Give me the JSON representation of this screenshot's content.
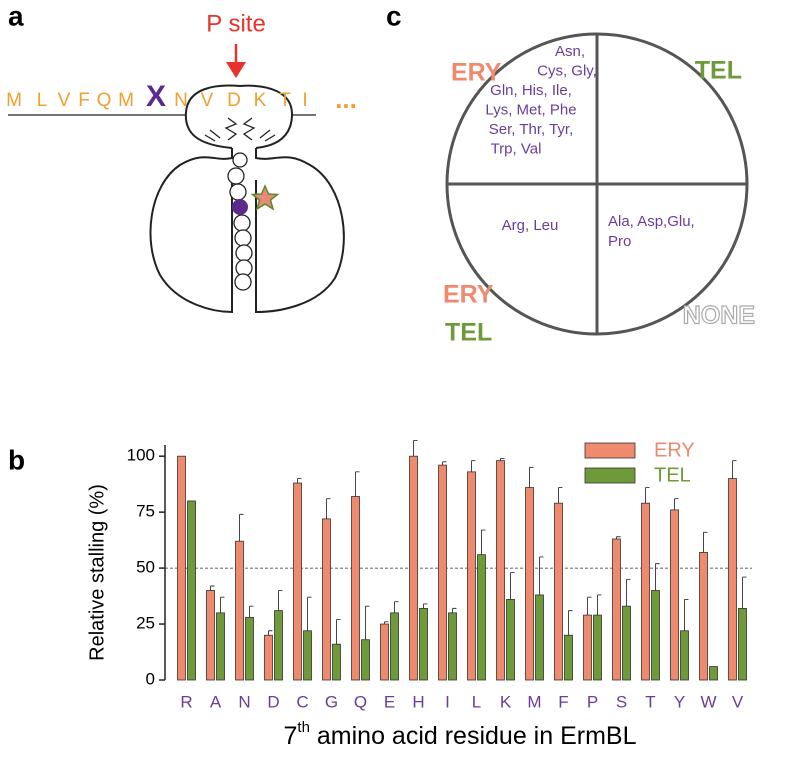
{
  "panel_labels": [
    "a",
    "b",
    "c"
  ],
  "panel_a": {
    "site_label": "P site",
    "sequence": [
      "M",
      "L",
      "V",
      "F",
      "Q",
      "M",
      "X",
      "N",
      "V",
      "D",
      "K",
      "T",
      "I",
      "..."
    ]
  },
  "panel_c": {
    "quadrants": [
      {
        "labels": [
          "ERY"
        ],
        "residues": [
          "Asn,",
          "Cys,  Gly,",
          "Gln, His,  Ile,",
          "Lys, Met, Phe",
          "Ser, Thr, Tyr,",
          "Trp, Val"
        ]
      },
      {
        "labels": [
          "TEL"
        ],
        "residues": []
      },
      {
        "labels": [
          "ERY",
          "TEL"
        ],
        "residues": [
          "Arg, Leu"
        ]
      },
      {
        "labels": [
          "NONE"
        ],
        "residues": [
          "Ala, Asp,Glu,",
          "Pro"
        ]
      }
    ]
  },
  "chart_data": {
    "type": "bar",
    "y_label": "Relative stalling (%)",
    "x_label_parts": [
      "7",
      "th",
      " amino acid residue in ErmBL"
    ],
    "categories": [
      "R",
      "A",
      "N",
      "D",
      "C",
      "G",
      "Q",
      "E",
      "H",
      "I",
      "L",
      "K",
      "M",
      "F",
      "P",
      "S",
      "T",
      "Y",
      "W",
      "V"
    ],
    "category_color": "#6a3d9a",
    "series": [
      {
        "name": "ERY",
        "color": "#f08a6e",
        "values": [
          100,
          40,
          62,
          20,
          88,
          72,
          82,
          25,
          100,
          96,
          93,
          98,
          86,
          79,
          29,
          63,
          79,
          76,
          57,
          90
        ],
        "errors": [
          0,
          2,
          12,
          2,
          2,
          9,
          11,
          1,
          7,
          1.5,
          5,
          1,
          9,
          7,
          8,
          1,
          7,
          5,
          9,
          8
        ]
      },
      {
        "name": "TEL",
        "color": "#6e9a3a",
        "values": [
          80,
          30,
          28,
          31,
          22,
          16,
          18,
          30,
          32,
          30,
          56,
          36,
          38,
          20,
          29,
          33,
          40,
          22,
          6,
          32
        ],
        "errors": [
          0,
          7,
          5,
          9,
          15,
          11,
          15,
          5,
          2,
          2,
          11,
          12,
          17,
          11,
          9,
          12,
          12,
          14,
          0,
          14
        ]
      }
    ],
    "ylim": [
      0,
      105
    ],
    "yticks": [
      0,
      25,
      50,
      75,
      100
    ],
    "reference_line": 50,
    "legend": "top-right"
  }
}
